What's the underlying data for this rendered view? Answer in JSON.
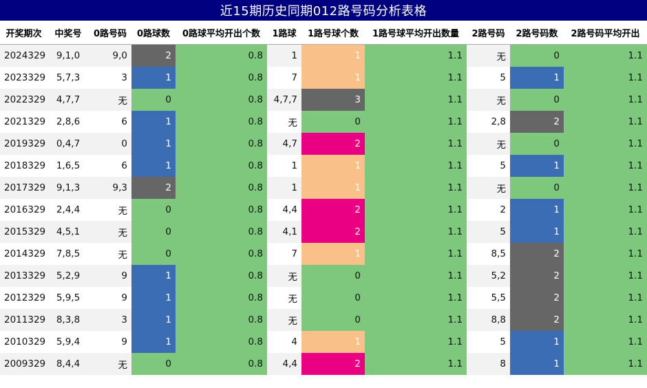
{
  "title": "近15期历史同期012路号码分析表格",
  "headers": [
    "开奖期次",
    "中奖号",
    "0路号码",
    "0路球数",
    "0路球平均开出个数",
    "1路球",
    "1路号球个数",
    "1路号球平均开出数量",
    "2路号码",
    "2路号码数",
    "2路号码平均开出"
  ],
  "colors": {
    "green": "#7ec87e",
    "blue": "#3b6db5",
    "gray": "#666666",
    "orange": "#f9c08a",
    "magenta": "#ea0082",
    "header_bg": "#000080"
  },
  "rows": [
    {
      "issue": "2024329",
      "nums": "9,1,0",
      "z_nums": "9,0",
      "z_cnt": "2",
      "z_avg": "0.8",
      "o_nums": "1",
      "o_cnt": "1",
      "o_avg": "1.1",
      "t_nums": "无",
      "t_cnt": "0",
      "t_avg": "1.1"
    },
    {
      "issue": "2023329",
      "nums": "5,7,3",
      "z_nums": "3",
      "z_cnt": "1",
      "z_avg": "0.8",
      "o_nums": "7",
      "o_cnt": "1",
      "o_avg": "1.1",
      "t_nums": "5",
      "t_cnt": "1",
      "t_avg": "1.1"
    },
    {
      "issue": "2022329",
      "nums": "4,7,7",
      "z_nums": "无",
      "z_cnt": "0",
      "z_avg": "0.8",
      "o_nums": "4,7,7",
      "o_cnt": "3",
      "o_avg": "1.1",
      "t_nums": "无",
      "t_cnt": "0",
      "t_avg": "1.1"
    },
    {
      "issue": "2021329",
      "nums": "2,8,6",
      "z_nums": "6",
      "z_cnt": "1",
      "z_avg": "0.8",
      "o_nums": "无",
      "o_cnt": "0",
      "o_avg": "1.1",
      "t_nums": "2,8",
      "t_cnt": "2",
      "t_avg": "1.1"
    },
    {
      "issue": "2019329",
      "nums": "0,4,7",
      "z_nums": "0",
      "z_cnt": "1",
      "z_avg": "0.8",
      "o_nums": "4,7",
      "o_cnt": "2",
      "o_avg": "1.1",
      "t_nums": "无",
      "t_cnt": "0",
      "t_avg": "1.1"
    },
    {
      "issue": "2018329",
      "nums": "1,6,5",
      "z_nums": "6",
      "z_cnt": "1",
      "z_avg": "0.8",
      "o_nums": "1",
      "o_cnt": "1",
      "o_avg": "1.1",
      "t_nums": "5",
      "t_cnt": "1",
      "t_avg": "1.1"
    },
    {
      "issue": "2017329",
      "nums": "9,1,3",
      "z_nums": "9,3",
      "z_cnt": "2",
      "z_avg": "0.8",
      "o_nums": "1",
      "o_cnt": "1",
      "o_avg": "1.1",
      "t_nums": "无",
      "t_cnt": "0",
      "t_avg": "1.1"
    },
    {
      "issue": "2016329",
      "nums": "2,4,4",
      "z_nums": "无",
      "z_cnt": "0",
      "z_avg": "0.8",
      "o_nums": "4,4",
      "o_cnt": "2",
      "o_avg": "1.1",
      "t_nums": "2",
      "t_cnt": "1",
      "t_avg": "1.1"
    },
    {
      "issue": "2015329",
      "nums": "4,5,1",
      "z_nums": "无",
      "z_cnt": "0",
      "z_avg": "0.8",
      "o_nums": "4,1",
      "o_cnt": "2",
      "o_avg": "1.1",
      "t_nums": "5",
      "t_cnt": "1",
      "t_avg": "1.1"
    },
    {
      "issue": "2014329",
      "nums": "7,8,5",
      "z_nums": "无",
      "z_cnt": "0",
      "z_avg": "0.8",
      "o_nums": "7",
      "o_cnt": "1",
      "o_avg": "1.1",
      "t_nums": "8,5",
      "t_cnt": "2",
      "t_avg": "1.1"
    },
    {
      "issue": "2013329",
      "nums": "5,2,9",
      "z_nums": "9",
      "z_cnt": "1",
      "z_avg": "0.8",
      "o_nums": "无",
      "o_cnt": "0",
      "o_avg": "1.1",
      "t_nums": "5,2",
      "t_cnt": "2",
      "t_avg": "1.1"
    },
    {
      "issue": "2012329",
      "nums": "5,9,5",
      "z_nums": "9",
      "z_cnt": "1",
      "z_avg": "0.8",
      "o_nums": "无",
      "o_cnt": "0",
      "o_avg": "1.1",
      "t_nums": "5,5",
      "t_cnt": "2",
      "t_avg": "1.1"
    },
    {
      "issue": "2011329",
      "nums": "8,3,8",
      "z_nums": "3",
      "z_cnt": "1",
      "z_avg": "0.8",
      "o_nums": "无",
      "o_cnt": "0",
      "o_avg": "1.1",
      "t_nums": "8,8",
      "t_cnt": "2",
      "t_avg": "1.1"
    },
    {
      "issue": "2010329",
      "nums": "5,9,4",
      "z_nums": "9",
      "z_cnt": "1",
      "z_avg": "0.8",
      "o_nums": "4",
      "o_cnt": "1",
      "o_avg": "1.1",
      "t_nums": "5",
      "t_cnt": "1",
      "t_avg": "1.1"
    },
    {
      "issue": "2009329",
      "nums": "8,4,4",
      "z_nums": "无",
      "z_cnt": "0",
      "z_avg": "0.8",
      "o_nums": "4,4",
      "o_cnt": "2",
      "o_avg": "1.1",
      "t_nums": "8",
      "t_cnt": "1",
      "t_avg": "1.1"
    }
  ]
}
